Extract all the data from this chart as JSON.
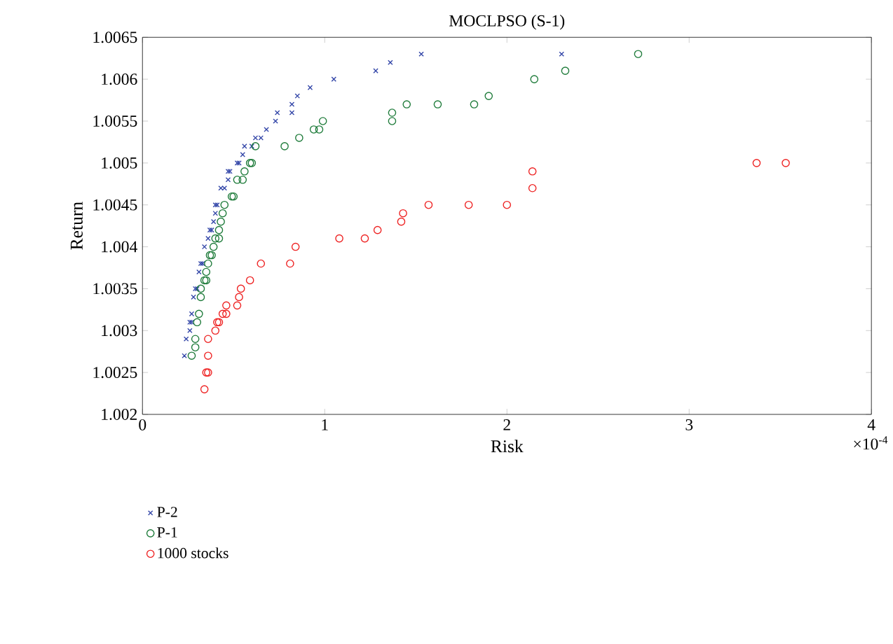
{
  "chart_data": {
    "type": "scatter",
    "title": "MOCLPSO (S-1)",
    "xlabel": "Risk",
    "ylabel": "Return",
    "annotations": [
      "×10$^{-4}$"
    ],
    "xlim": [
      0,
      4
    ],
    "xticks": [
      0,
      1,
      2,
      3,
      4
    ],
    "ylim": [
      1.002,
      1.0065
    ],
    "yticks": [
      1.002,
      1.0025,
      1.003,
      1.0035,
      1.004,
      1.0045,
      1.005,
      1.0055,
      1.006,
      1.0065
    ],
    "legend": "bottom left",
    "grid": false,
    "series": [
      {
        "name": "P-2",
        "color": "#3346a8",
        "marker": "cross",
        "x": [
          0.23,
          0.24,
          0.26,
          0.26,
          0.27,
          0.27,
          0.28,
          0.29,
          0.3,
          0.31,
          0.32,
          0.33,
          0.34,
          0.36,
          0.37,
          0.38,
          0.39,
          0.4,
          0.4,
          0.41,
          0.43,
          0.45,
          0.47,
          0.47,
          0.48,
          0.52,
          0.53,
          0.55,
          0.56,
          0.6,
          0.62,
          0.65,
          0.68,
          0.73,
          0.74,
          0.82,
          0.82,
          0.85,
          0.92,
          1.05,
          1.28,
          1.36,
          1.53,
          2.3
        ],
        "values": [
          1.0027,
          1.0029,
          1.003,
          1.0031,
          1.0031,
          1.0032,
          1.0034,
          1.0035,
          1.0035,
          1.0037,
          1.0038,
          1.0038,
          1.004,
          1.0041,
          1.0042,
          1.0042,
          1.0043,
          1.0044,
          1.0045,
          1.0045,
          1.0047,
          1.0047,
          1.0048,
          1.0049,
          1.0049,
          1.005,
          1.005,
          1.0051,
          1.0052,
          1.0052,
          1.0053,
          1.0053,
          1.0054,
          1.0055,
          1.0056,
          1.0056,
          1.0057,
          1.0058,
          1.0059,
          1.006,
          1.0061,
          1.0062,
          1.0063,
          1.0063
        ]
      },
      {
        "name": "P-1",
        "color": "#1e7b3a",
        "marker": "circle",
        "x": [
          0.27,
          0.29,
          0.29,
          0.3,
          0.31,
          0.32,
          0.32,
          0.34,
          0.35,
          0.35,
          0.36,
          0.37,
          0.38,
          0.39,
          0.4,
          0.42,
          0.42,
          0.43,
          0.44,
          0.45,
          0.49,
          0.5,
          0.52,
          0.55,
          0.56,
          0.59,
          0.6,
          0.62,
          0.78,
          0.86,
          0.94,
          0.97,
          0.99,
          1.37,
          1.37,
          1.45,
          1.62,
          1.82,
          1.9,
          2.15,
          2.32,
          2.72
        ],
        "values": [
          1.0027,
          1.0028,
          1.0029,
          1.0031,
          1.0032,
          1.0034,
          1.0035,
          1.0036,
          1.0036,
          1.0037,
          1.0038,
          1.0039,
          1.0039,
          1.004,
          1.0041,
          1.0041,
          1.0042,
          1.0043,
          1.0044,
          1.0045,
          1.0046,
          1.0046,
          1.0048,
          1.0048,
          1.0049,
          1.005,
          1.005,
          1.0052,
          1.0052,
          1.0053,
          1.0054,
          1.0054,
          1.0055,
          1.0055,
          1.0056,
          1.0057,
          1.0057,
          1.0057,
          1.0058,
          1.006,
          1.0061,
          1.0063
        ]
      },
      {
        "name": "1000 stocks",
        "color": "#ee2222",
        "marker": "circle",
        "x": [
          0.34,
          0.35,
          0.36,
          0.36,
          0.36,
          0.4,
          0.41,
          0.42,
          0.44,
          0.46,
          0.46,
          0.52,
          0.53,
          0.54,
          0.59,
          0.65,
          0.81,
          0.84,
          1.08,
          1.22,
          1.29,
          1.42,
          1.43,
          1.57,
          1.79,
          2.0,
          2.14,
          2.14,
          3.37,
          3.53
        ],
        "values": [
          1.0023,
          1.0025,
          1.0025,
          1.0027,
          1.0029,
          1.003,
          1.0031,
          1.0031,
          1.0032,
          1.0032,
          1.0033,
          1.0033,
          1.0034,
          1.0035,
          1.0036,
          1.0038,
          1.0038,
          1.004,
          1.0041,
          1.0041,
          1.0042,
          1.0043,
          1.0044,
          1.0045,
          1.0045,
          1.0045,
          1.0047,
          1.0049,
          1.005,
          1.005
        ]
      }
    ]
  }
}
